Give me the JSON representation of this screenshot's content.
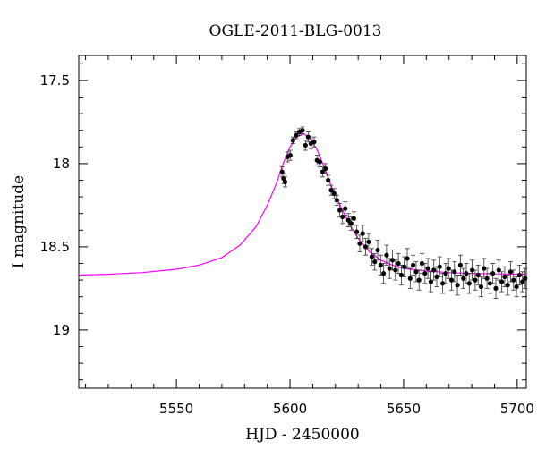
{
  "chart_data": {
    "type": "scatter",
    "title": "OGLE-2011-BLG-0013",
    "xlabel": "HJD - 2450000",
    "ylabel": "I magnitude",
    "xlim": [
      5507,
      5704
    ],
    "ylim": [
      19.35,
      17.35
    ],
    "y_inverted": true,
    "grid": false,
    "x_ticks": [
      5550,
      5600,
      5650,
      5700
    ],
    "x_tick_labels": [
      "5550",
      "5600",
      "5650",
      "5700"
    ],
    "y_ticks": [
      17.5,
      18,
      18.5,
      19
    ],
    "y_tick_labels": [
      "17.5",
      "18",
      "18.5",
      "19"
    ],
    "model_color": "#ff00ff",
    "point_color": "#000000",
    "model": {
      "name": "",
      "x": [
        5507,
        5520,
        5535,
        5550,
        5560,
        5570,
        5578,
        5585,
        5590,
        5594,
        5597,
        5600,
        5603,
        5606,
        5609,
        5612,
        5615,
        5618,
        5622,
        5626,
        5630,
        5635,
        5640,
        5645,
        5650,
        5660,
        5670,
        5680,
        5690,
        5704
      ],
      "y": [
        18.67,
        18.665,
        18.655,
        18.635,
        18.61,
        18.565,
        18.49,
        18.38,
        18.25,
        18.12,
        18.0,
        17.9,
        17.84,
        17.82,
        17.85,
        17.92,
        18.02,
        18.13,
        18.25,
        18.36,
        18.45,
        18.53,
        18.58,
        18.61,
        18.63,
        18.645,
        18.655,
        18.66,
        18.663,
        18.665
      ]
    },
    "series": [
      {
        "name": "",
        "x": [
          5596.5,
          5597.2,
          5597.8,
          5598.9,
          5600.1,
          5601.3,
          5602.7,
          5604.1,
          5605.5,
          5606.8,
          5608.0,
          5609.2,
          5610.6,
          5611.9,
          5613.1,
          5614.3,
          5615.6,
          5616.8,
          5618.1,
          5619.4,
          5620.6,
          5621.9,
          5623.1,
          5624.3,
          5625.7,
          5626.9,
          5628.1,
          5629.4,
          5630.7,
          5632.0,
          5633.3,
          5634.6,
          5636.0,
          5637.3,
          5638.6,
          5639.9,
          5641.2,
          5642.5,
          5643.8,
          5645.1,
          5646.4,
          5647.7,
          5649.0,
          5650.3,
          5651.6,
          5652.9,
          5654.2,
          5655.5,
          5656.8,
          5658.1,
          5659.4,
          5660.7,
          5662.0,
          5663.3,
          5664.6,
          5665.9,
          5667.2,
          5668.5,
          5669.8,
          5671.1,
          5672.4,
          5673.7,
          5675.0,
          5676.3,
          5677.6,
          5678.9,
          5680.2,
          5681.5,
          5682.8,
          5684.1,
          5685.4,
          5686.7,
          5688.0,
          5689.3,
          5690.6,
          5691.9,
          5693.2,
          5694.5,
          5695.8,
          5697.1,
          5698.4,
          5699.7,
          5701.0,
          5702.3,
          5703.5
        ],
        "y": [
          18.05,
          18.09,
          18.11,
          17.96,
          17.95,
          17.86,
          17.83,
          17.81,
          17.8,
          17.89,
          17.84,
          17.88,
          17.87,
          17.98,
          17.99,
          18.05,
          18.03,
          18.1,
          18.16,
          18.18,
          18.22,
          18.28,
          18.32,
          18.27,
          18.34,
          18.36,
          18.33,
          18.41,
          18.48,
          18.42,
          18.5,
          18.47,
          18.56,
          18.59,
          18.52,
          18.61,
          18.66,
          18.55,
          18.63,
          18.58,
          18.64,
          18.6,
          18.67,
          18.62,
          18.57,
          18.69,
          18.61,
          18.65,
          18.7,
          18.6,
          18.66,
          18.63,
          18.71,
          18.64,
          18.68,
          18.62,
          18.72,
          18.66,
          18.63,
          18.7,
          18.65,
          18.73,
          18.61,
          18.69,
          18.66,
          18.72,
          18.64,
          18.7,
          18.67,
          18.74,
          18.63,
          18.69,
          18.72,
          18.66,
          18.75,
          18.64,
          18.71,
          18.68,
          18.73,
          18.65,
          18.7,
          18.74,
          18.67,
          18.71,
          18.69
        ],
        "err": [
          0.03,
          0.03,
          0.03,
          0.03,
          0.03,
          0.02,
          0.02,
          0.02,
          0.02,
          0.03,
          0.03,
          0.03,
          0.03,
          0.03,
          0.03,
          0.03,
          0.03,
          0.03,
          0.03,
          0.03,
          0.03,
          0.04,
          0.04,
          0.04,
          0.04,
          0.04,
          0.04,
          0.04,
          0.05,
          0.05,
          0.05,
          0.05,
          0.05,
          0.05,
          0.06,
          0.06,
          0.06,
          0.06,
          0.06,
          0.06,
          0.06,
          0.06,
          0.06,
          0.06,
          0.06,
          0.06,
          0.06,
          0.06,
          0.06,
          0.06,
          0.06,
          0.06,
          0.06,
          0.06,
          0.06,
          0.06,
          0.06,
          0.06,
          0.06,
          0.06,
          0.06,
          0.06,
          0.06,
          0.06,
          0.06,
          0.06,
          0.06,
          0.06,
          0.06,
          0.06,
          0.06,
          0.06,
          0.06,
          0.06,
          0.06,
          0.06,
          0.06,
          0.06,
          0.06,
          0.06,
          0.06,
          0.06,
          0.06,
          0.06,
          0.06
        ]
      }
    ]
  }
}
